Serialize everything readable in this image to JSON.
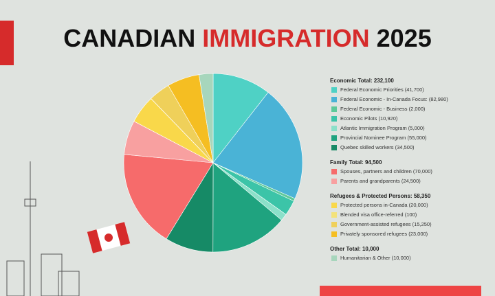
{
  "chart_data": {
    "type": "pie",
    "title_parts": [
      "CANADIAN",
      "IMMIGRATION",
      "2025"
    ],
    "groups": [
      {
        "title": "Economic Total: 232,100",
        "items": [
          {
            "name": "Federal Economic Priorities",
            "value": 41700,
            "value_label": "(41,700)",
            "color": "#4fd1c5"
          },
          {
            "name": "Federal Economic - In-Canada Focus:",
            "value": 82980,
            "value_label": "(82,980)",
            "color": "#4ab3d6"
          },
          {
            "name": "Federal Economic - Business",
            "value": 2000,
            "value_label": "(2,000)",
            "color": "#5ec99a"
          },
          {
            "name": "Economic Pilots",
            "value": 10920,
            "value_label": "(10,920)",
            "color": "#3cc4a8"
          },
          {
            "name": "Atlantic Immigration Program",
            "value": 5000,
            "value_label": "(5,000)",
            "color": "#8be0c9"
          },
          {
            "name": "Provincial Nominee Program",
            "value": 55000,
            "value_label": "(55,000)",
            "color": "#1fa37f"
          },
          {
            "name": "Quebec skilled workers",
            "value": 34500,
            "value_label": "(34,500)",
            "color": "#168a66"
          }
        ]
      },
      {
        "title": "Family Total: 94,500",
        "items": [
          {
            "name": "Spouses, partners and children",
            "value": 70000,
            "value_label": "(70,000)",
            "color": "#f66b6b"
          },
          {
            "name": "Parents and grandparents",
            "value": 24500,
            "value_label": "(24,500)",
            "color": "#f8a0a0"
          }
        ]
      },
      {
        "title": "Refugees & Protected Persons: 58,350",
        "items": [
          {
            "name": "Protected persons in-Canada",
            "value": 20000,
            "value_label": "(20,000)",
            "color": "#f9d84a"
          },
          {
            "name": "Blended visa office-referred",
            "value": 100,
            "value_label": "(100)",
            "color": "#f3e27a"
          },
          {
            "name": "Government-assisted refugees",
            "value": 15250,
            "value_label": "(15,250)",
            "color": "#efd05a"
          },
          {
            "name": "Privately sponsored refugees",
            "value": 23000,
            "value_label": "(23,000)",
            "color": "#f5be22"
          }
        ]
      },
      {
        "title": "Other Total: 10,000",
        "items": [
          {
            "name": "Humanitarian & Other",
            "value": 10000,
            "value_label": "(10,000)",
            "color": "#a7d6bc"
          }
        ]
      }
    ]
  }
}
